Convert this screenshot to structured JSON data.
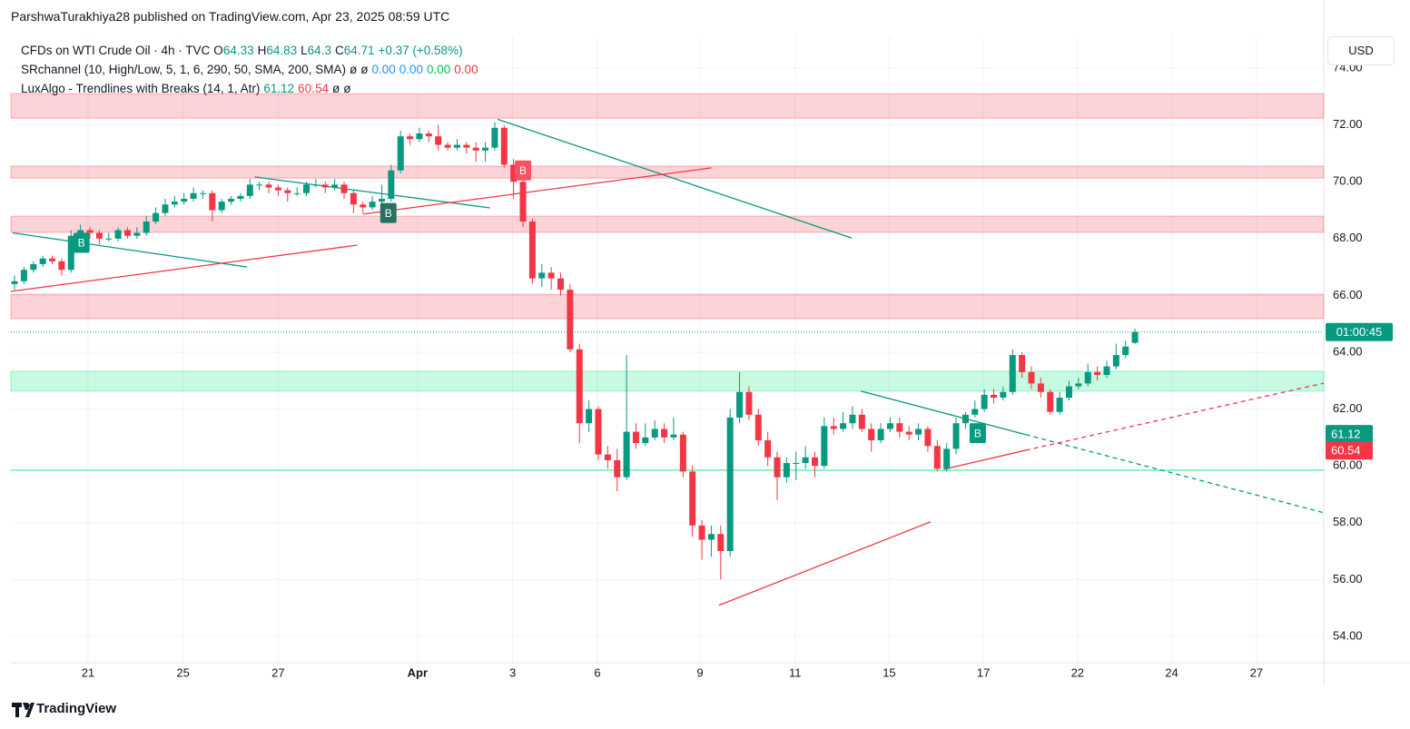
{
  "header": {
    "title": "ParshwaTurakhiya28 published on TradingView.com, Apr 23, 2025 08:59 UTC"
  },
  "footer": {
    "brand": "TradingView"
  },
  "currency": "USD",
  "chart_data": {
    "type": "candlestick",
    "legend": {
      "symbol": "CFDs on WTI Crude Oil · 4h · TVC",
      "ohlc_letters": [
        "O",
        "H",
        "L",
        "C"
      ],
      "value_color": "#089981",
      "change": "+0.37 (+0.58%)",
      "indicators": [
        {
          "name": "SRchannel (10, High/Low, 5, 1, 6, 290, 50, SMA, 200, SMA)",
          "values": [
            {
              "text": "ø",
              "color": "#131722"
            },
            {
              "text": "ø",
              "color": "#131722"
            },
            {
              "text": "0.00",
              "color": "#2196f3"
            },
            {
              "text": "0.00",
              "color": "#2196f3"
            },
            {
              "text": "0.00",
              "color": "#00c853"
            },
            {
              "text": "0.00",
              "color": "#f23645"
            }
          ]
        },
        {
          "name": "LuxAlgo - Trendlines with Breaks (14, 1, Atr)",
          "values": [
            {
              "text": "61.12",
              "color": "#089981"
            },
            {
              "text": "60.54",
              "color": "#f23645"
            },
            {
              "text": "ø",
              "color": "#131722"
            },
            {
              "text": "ø",
              "color": "#131722"
            }
          ]
        }
      ]
    },
    "up_color": "#089981",
    "down_color": "#f23645",
    "candles": [
      [
        66.4,
        66.7,
        66.2,
        66.5
      ],
      [
        66.5,
        67.0,
        66.4,
        66.9
      ],
      [
        66.9,
        67.2,
        66.8,
        67.1
      ],
      [
        67.1,
        67.4,
        67.0,
        67.3
      ],
      [
        67.3,
        67.4,
        67.1,
        67.2
      ],
      [
        67.2,
        67.3,
        66.7,
        66.9
      ],
      [
        66.9,
        68.3,
        66.8,
        68.1
      ],
      [
        68.1,
        68.5,
        68.0,
        68.3
      ],
      [
        68.3,
        68.4,
        68.0,
        68.2
      ],
      [
        68.2,
        68.3,
        67.8,
        68.0
      ],
      [
        68.0,
        68.2,
        67.9,
        68.0
      ],
      [
        68.0,
        68.4,
        67.9,
        68.3
      ],
      [
        68.3,
        68.4,
        68.0,
        68.1
      ],
      [
        68.1,
        68.4,
        68.0,
        68.2
      ],
      [
        68.2,
        68.8,
        68.1,
        68.6
      ],
      [
        68.6,
        69.1,
        68.5,
        68.9
      ],
      [
        68.9,
        69.4,
        68.8,
        69.2
      ],
      [
        69.2,
        69.5,
        69.1,
        69.3
      ],
      [
        69.3,
        69.6,
        69.2,
        69.4
      ],
      [
        69.4,
        69.8,
        69.3,
        69.6
      ],
      [
        69.6,
        69.7,
        69.4,
        69.6
      ],
      [
        69.6,
        69.7,
        68.6,
        69.0
      ],
      [
        69.0,
        69.4,
        68.9,
        69.3
      ],
      [
        69.3,
        69.5,
        69.2,
        69.4
      ],
      [
        69.4,
        69.6,
        69.3,
        69.5
      ],
      [
        69.5,
        70.1,
        69.4,
        69.9
      ],
      [
        69.9,
        70.0,
        69.7,
        69.9
      ],
      [
        69.9,
        70.0,
        69.6,
        69.8
      ],
      [
        69.8,
        69.9,
        69.5,
        69.7
      ],
      [
        69.7,
        69.8,
        69.3,
        69.6
      ],
      [
        69.6,
        69.8,
        69.5,
        69.6
      ],
      [
        69.6,
        70.0,
        69.5,
        69.9
      ],
      [
        69.9,
        70.1,
        69.8,
        69.9
      ],
      [
        69.9,
        70.0,
        69.6,
        69.8
      ],
      [
        69.8,
        70.1,
        69.7,
        69.9
      ],
      [
        69.9,
        70.0,
        69.4,
        69.6
      ],
      [
        69.6,
        69.7,
        68.9,
        69.2
      ],
      [
        69.2,
        69.3,
        68.9,
        69.1
      ],
      [
        69.1,
        69.5,
        69.0,
        69.3
      ],
      [
        69.3,
        69.9,
        69.2,
        69.4
      ],
      [
        69.4,
        70.6,
        69.3,
        70.4
      ],
      [
        70.4,
        71.8,
        70.3,
        71.6
      ],
      [
        71.6,
        71.7,
        71.3,
        71.5
      ],
      [
        71.5,
        71.9,
        71.4,
        71.7
      ],
      [
        71.7,
        71.8,
        71.4,
        71.6
      ],
      [
        71.6,
        72.0,
        71.1,
        71.3
      ],
      [
        71.3,
        71.4,
        71.1,
        71.2
      ],
      [
        71.2,
        71.5,
        71.1,
        71.3
      ],
      [
        71.3,
        71.4,
        71.0,
        71.2
      ],
      [
        71.2,
        71.4,
        70.7,
        71.1
      ],
      [
        71.1,
        71.4,
        70.7,
        71.2
      ],
      [
        71.2,
        72.1,
        71.1,
        71.9
      ],
      [
        71.9,
        72.0,
        70.5,
        70.6
      ],
      [
        70.6,
        70.8,
        69.4,
        70.0
      ],
      [
        70.0,
        70.2,
        68.4,
        68.6
      ],
      [
        68.6,
        68.7,
        66.4,
        66.6
      ],
      [
        66.6,
        67.1,
        66.3,
        66.8
      ],
      [
        66.8,
        67.0,
        66.2,
        66.6
      ],
      [
        66.6,
        66.8,
        66.0,
        66.2
      ],
      [
        66.2,
        66.4,
        64.0,
        64.1
      ],
      [
        64.1,
        64.3,
        60.8,
        61.5
      ],
      [
        61.5,
        62.3,
        61.2,
        62.0
      ],
      [
        62.0,
        62.1,
        60.2,
        60.4
      ],
      [
        60.4,
        60.7,
        59.9,
        60.2
      ],
      [
        60.2,
        60.6,
        59.1,
        59.6
      ],
      [
        59.6,
        63.9,
        59.5,
        61.2
      ],
      [
        61.2,
        61.5,
        60.6,
        60.8
      ],
      [
        60.8,
        61.5,
        60.7,
        61.0
      ],
      [
        61.0,
        61.6,
        60.9,
        61.3
      ],
      [
        61.3,
        61.5,
        60.8,
        61.0
      ],
      [
        61.0,
        61.7,
        60.9,
        61.1
      ],
      [
        61.1,
        61.2,
        59.6,
        59.8
      ],
      [
        59.8,
        60.0,
        57.5,
        57.9
      ],
      [
        57.9,
        58.1,
        56.7,
        57.4
      ],
      [
        57.4,
        57.9,
        56.8,
        57.6
      ],
      [
        57.6,
        57.9,
        56.0,
        57.0
      ],
      [
        57.0,
        62.0,
        56.8,
        61.7
      ],
      [
        61.7,
        63.3,
        61.5,
        62.6
      ],
      [
        62.6,
        62.8,
        61.6,
        61.8
      ],
      [
        61.8,
        62.0,
        60.7,
        60.9
      ],
      [
        60.9,
        61.2,
        60.0,
        60.3
      ],
      [
        60.3,
        60.5,
        58.8,
        59.6
      ],
      [
        59.6,
        60.3,
        59.4,
        60.1
      ],
      [
        60.1,
        60.5,
        59.5,
        60.1
      ],
      [
        60.1,
        60.7,
        59.9,
        60.3
      ],
      [
        60.3,
        60.5,
        59.6,
        60.0
      ],
      [
        60.0,
        61.7,
        59.9,
        61.4
      ],
      [
        61.4,
        61.7,
        61.1,
        61.3
      ],
      [
        61.3,
        61.9,
        61.2,
        61.5
      ],
      [
        61.5,
        62.1,
        61.3,
        61.8
      ],
      [
        61.8,
        62.0,
        61.2,
        61.3
      ],
      [
        61.3,
        61.5,
        60.5,
        60.9
      ],
      [
        60.9,
        61.5,
        60.8,
        61.3
      ],
      [
        61.3,
        61.7,
        61.2,
        61.5
      ],
      [
        61.5,
        61.7,
        61.0,
        61.2
      ],
      [
        61.2,
        61.4,
        60.9,
        61.1
      ],
      [
        61.1,
        61.5,
        60.9,
        61.3
      ],
      [
        61.3,
        61.4,
        60.5,
        60.7
      ],
      [
        60.7,
        60.9,
        59.8,
        59.9
      ],
      [
        59.9,
        60.8,
        59.8,
        60.6
      ],
      [
        60.6,
        61.7,
        60.4,
        61.5
      ],
      [
        61.5,
        61.9,
        61.3,
        61.8
      ],
      [
        61.8,
        62.3,
        61.7,
        62.0
      ],
      [
        62.0,
        62.7,
        61.9,
        62.5
      ],
      [
        62.5,
        62.7,
        62.2,
        62.4
      ],
      [
        62.4,
        62.8,
        62.3,
        62.6
      ],
      [
        62.6,
        64.1,
        62.5,
        63.9
      ],
      [
        63.9,
        64.0,
        63.1,
        63.3
      ],
      [
        63.3,
        63.5,
        62.7,
        62.9
      ],
      [
        62.9,
        63.1,
        62.4,
        62.6
      ],
      [
        62.6,
        62.7,
        61.8,
        61.9
      ],
      [
        61.9,
        62.6,
        61.8,
        62.4
      ],
      [
        62.4,
        63.0,
        62.3,
        62.8
      ],
      [
        62.8,
        63.1,
        62.7,
        62.9
      ],
      [
        62.9,
        63.6,
        62.8,
        63.3
      ],
      [
        63.3,
        63.5,
        63.0,
        63.2
      ],
      [
        63.2,
        63.7,
        63.1,
        63.5
      ],
      [
        63.5,
        64.3,
        63.4,
        63.9
      ],
      [
        63.9,
        64.4,
        63.8,
        64.2
      ],
      [
        64.33,
        64.83,
        64.3,
        64.71
      ]
    ],
    "xlim": [
      -0.39,
      139.05
    ],
    "xticks": [
      {
        "value": 7.8,
        "label": "21"
      },
      {
        "value": 17.9,
        "label": "25"
      },
      {
        "value": 28,
        "label": "27"
      },
      {
        "value": 42.8,
        "label": "Apr"
      },
      {
        "value": 52.9,
        "label": "3"
      },
      {
        "value": 61.9,
        "label": "6"
      },
      {
        "value": 72.8,
        "label": "9"
      },
      {
        "value": 82.9,
        "label": "11"
      },
      {
        "value": 92.9,
        "label": "15"
      },
      {
        "value": 102.9,
        "label": "17"
      },
      {
        "value": 112.9,
        "label": "22"
      },
      {
        "value": 122.9,
        "label": "24"
      },
      {
        "value": 131.9,
        "label": "27"
      }
    ],
    "ylim": [
      53.07,
      75.12
    ],
    "yticks": [
      {
        "value": 54,
        "label": "54.00"
      },
      {
        "value": 56,
        "label": "56.00"
      },
      {
        "value": 58,
        "label": "58.00"
      },
      {
        "value": 60,
        "label": "60.00"
      },
      {
        "value": 62,
        "label": "62.00"
      },
      {
        "value": 64,
        "label": "64.00"
      },
      {
        "value": 66,
        "label": "66.00"
      },
      {
        "value": 68,
        "label": "68.00"
      },
      {
        "value": 70,
        "label": "70.00"
      },
      {
        "value": 72,
        "label": "72.00"
      },
      {
        "value": 74,
        "label": "74.00"
      }
    ],
    "grid": true,
    "zones": [
      {
        "from": 72.24,
        "to": 73.1,
        "color": "#f23645"
      },
      {
        "from": 70.13,
        "to": 70.55,
        "color": "#f23645"
      },
      {
        "from": 68.22,
        "to": 68.79,
        "color": "#f23645"
      },
      {
        "from": 65.18,
        "to": 66.04,
        "color": "#f23645"
      },
      {
        "from": 62.63,
        "to": 63.33,
        "color": "#00e676"
      }
    ],
    "levels": [
      {
        "value": 59.85,
        "color": "#00e676"
      }
    ],
    "trendlines": [
      {
        "color": "#089981",
        "dashed": false,
        "points": [
          [
            -0.2,
            68.2
          ],
          [
            24.7,
            67.0
          ]
        ]
      },
      {
        "color": "#089981",
        "dashed": false,
        "points": [
          [
            25.5,
            70.17
          ],
          [
            50.5,
            69.08
          ]
        ]
      },
      {
        "color": "#089981",
        "dashed": false,
        "points": [
          [
            51.3,
            72.2
          ],
          [
            88.9,
            68.02
          ]
        ]
      },
      {
        "color": "#089981",
        "dashed": false,
        "points": [
          [
            89.9,
            62.63
          ],
          [
            107.4,
            61.1
          ]
        ]
      },
      {
        "color": "#089981",
        "dashed": true,
        "points": [
          [
            107.4,
            61.1
          ],
          [
            139.05,
            58.35
          ]
        ]
      },
      {
        "color": "#f23645",
        "dashed": false,
        "points": [
          [
            -0.4,
            66.14
          ],
          [
            36.4,
            67.77
          ]
        ]
      },
      {
        "color": "#f23645",
        "dashed": false,
        "points": [
          [
            37,
            68.86
          ],
          [
            74,
            70.49
          ]
        ]
      },
      {
        "color": "#f23645",
        "dashed": false,
        "points": [
          [
            74.8,
            55.09
          ],
          [
            97.3,
            58.03
          ]
        ]
      },
      {
        "color": "#f23645",
        "dashed": false,
        "points": [
          [
            98.7,
            59.88
          ],
          [
            107.4,
            60.55
          ]
        ]
      },
      {
        "color": "#f23645",
        "dashed": true,
        "points": [
          [
            107.4,
            60.55
          ],
          [
            139.05,
            62.91
          ]
        ]
      }
    ],
    "breaks": [
      {
        "label": "B",
        "x": 7.1,
        "price": 67.85,
        "color": "#089981"
      },
      {
        "label": "B",
        "x": 39.7,
        "price": 68.9,
        "color": "#26725f"
      },
      {
        "label": "B",
        "x": 54,
        "price": 70.4,
        "color": "#f7525f"
      },
      {
        "label": "B",
        "x": 102.3,
        "price": 61.15,
        "color": "#089981"
      }
    ],
    "price_line": {
      "value": 64.71,
      "label": "01:00:45",
      "color": "#089981"
    },
    "badges": [
      {
        "value": 61.12,
        "color": "#089981"
      },
      {
        "value": 60.54,
        "color": "#f23645"
      }
    ]
  }
}
